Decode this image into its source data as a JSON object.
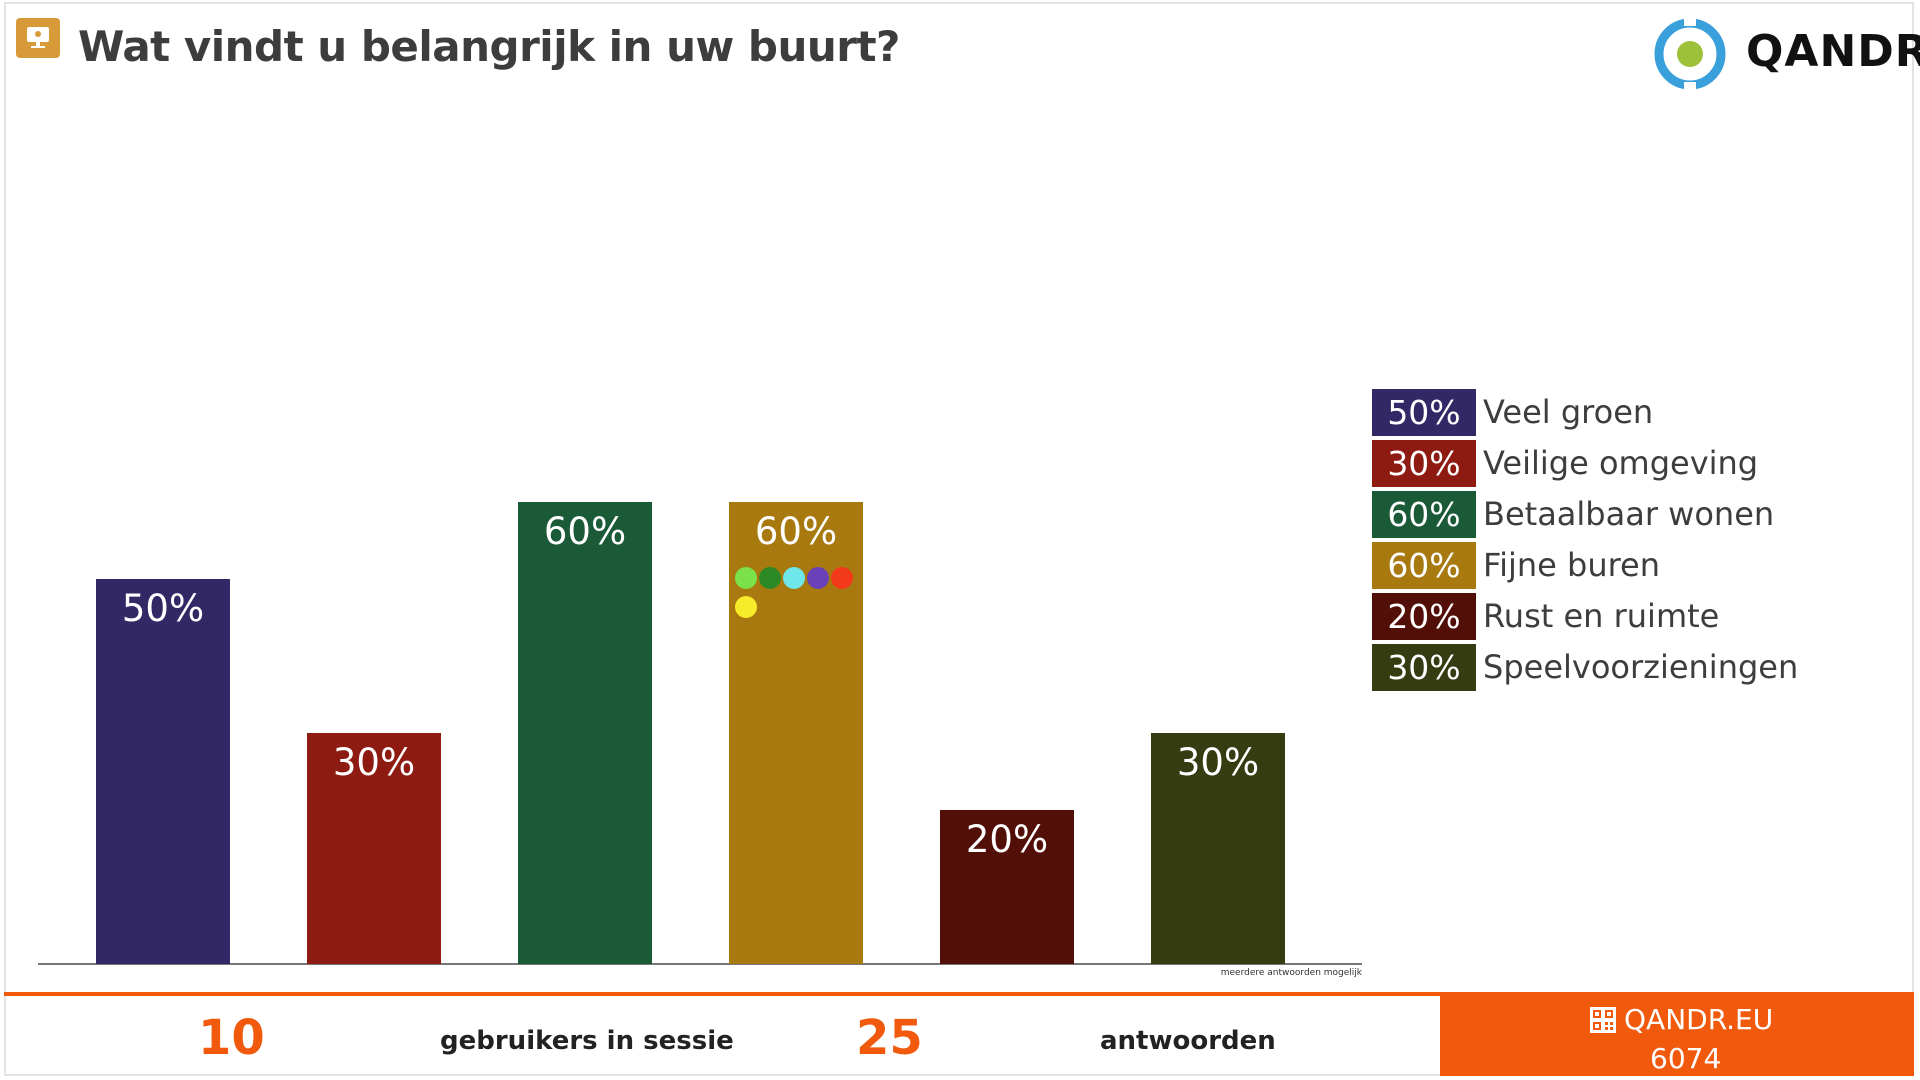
{
  "header": {
    "title": "Wat vindt u belangrijk in uw buurt?",
    "brand": "QANDR",
    "brand_colors": {
      "ring": "#3aa0dc",
      "dot": "#9dc13a"
    }
  },
  "chart_data": {
    "type": "bar",
    "categories": [
      "Veel groen",
      "Veilige omgeving",
      "Betaalbaar wonen",
      "Fijne buren",
      "Rust en ruimte",
      "Speelvoorzieningen"
    ],
    "values": [
      50,
      30,
      60,
      60,
      20,
      30
    ],
    "value_labels": [
      "50%",
      "30%",
      "60%",
      "60%",
      "20%",
      "30%"
    ],
    "colors": [
      "#322866",
      "#8e1b12",
      "#1b5a37",
      "#a8790f",
      "#520f08",
      "#363c12"
    ],
    "ylim": [
      0,
      100
    ],
    "unit": "%",
    "legend_position": "right",
    "grid": false,
    "voter_dots": {
      "bar_index": 3,
      "colors": [
        "#7be14a",
        "#2c8a26",
        "#6ee6ea",
        "#6a41b8",
        "#f23a1a",
        "#f7ec2a"
      ]
    },
    "footnote": "meerdere antwoorden mogelijk"
  },
  "footer": {
    "users_count": "10",
    "users_label": "gebruikers in sessie",
    "answers_count": "25",
    "answers_label": "antwoorden",
    "site": "QANDR.EU",
    "session_code": "6074",
    "accent": "#f15a0c"
  }
}
